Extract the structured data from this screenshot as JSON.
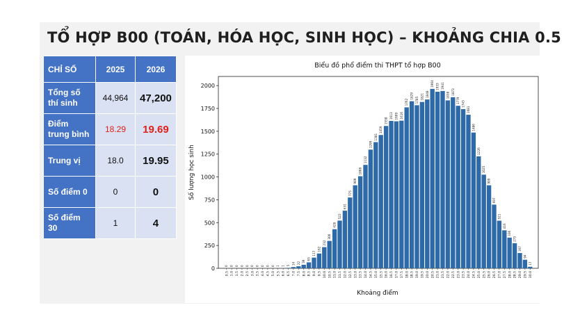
{
  "slide": {
    "title": "TỔ HỢP B00 (TOÁN, HÓA HỌC, SINH HỌC) – KHOẢNG CHIA 0.5"
  },
  "stats_table": {
    "header": [
      "CHỈ SỐ",
      "2025",
      "2026"
    ],
    "rows": [
      {
        "label": "Tổng số thí sinh",
        "v2025": "44,964",
        "v2026": "47,200"
      },
      {
        "label": "Điểm trung bình",
        "v2025": "18.29",
        "v2026": "19.69"
      },
      {
        "label": "Trung vị",
        "v2025": "18.0",
        "v2026": "19.95"
      },
      {
        "label": "Số điểm 0",
        "v2025": "0",
        "v2026": "0"
      },
      {
        "label": "Số điểm 30",
        "v2025": "1",
        "v2026": "4"
      }
    ],
    "colors": {
      "header_bg": "#4472c4",
      "cell_bg": "#d9e1f2",
      "highlight": "#e0201a"
    }
  },
  "chart_data": {
    "type": "bar",
    "title": "Biểu đồ phổ điểm thi THPT tổ hợp B00",
    "xlabel": "Khoảng điểm",
    "ylabel": "Số lượng học sinh",
    "ylim": [
      0,
      2100
    ],
    "yticks": [
      0,
      250,
      500,
      750,
      1000,
      1250,
      1500,
      1750,
      2000
    ],
    "bar_color": "#2f6aa8",
    "categories": [
      "0.5",
      "1.0",
      "1.5",
      "2.0",
      "2.5",
      "3.0",
      "3.5",
      "4.0",
      "4.5",
      "5.0",
      "5.5",
      "6.0",
      "6.5",
      "7.0",
      "7.5",
      "8.0",
      "8.5",
      "9.0",
      "9.5",
      "10.0",
      "10.5",
      "11.0",
      "11.5",
      "12.0",
      "12.5",
      "13.0",
      "13.5",
      "14.0",
      "14.5",
      "15.0",
      "15.5",
      "16.0",
      "16.5",
      "17.0",
      "17.5",
      "18.0",
      "18.5",
      "19.0",
      "19.5",
      "20.0",
      "20.5",
      "21.0",
      "21.5",
      "22.0",
      "22.5",
      "23.0",
      "23.5",
      "24.0",
      "24.5",
      "25.0",
      "25.5",
      "26.0",
      "26.5",
      "27.0",
      "27.5",
      "28.0",
      "28.5",
      "29.0",
      "29.5",
      "30.0"
    ],
    "values": [
      0,
      0,
      0,
      0,
      0,
      0,
      0,
      0,
      0,
      0,
      1,
      1,
      5,
      14,
      22,
      39,
      65,
      117,
      162,
      232,
      300,
      428,
      522,
      631,
      775,
      909,
      1008,
      1132,
      1299,
      1381,
      1459,
      1558,
      1613,
      1609,
      1616,
      1762,
      1829,
      1785,
      1821,
      1848,
      1964,
      1933,
      1941,
      1838,
      1873,
      1779,
      1743,
      1681,
      1486,
      1226,
      1025,
      909,
      697,
      521,
      416,
      336,
      275,
      167,
      94,
      17
    ],
    "data_labels": [
      "0",
      "0",
      "0",
      "0",
      "0",
      "0",
      "0",
      "0",
      "0",
      "0",
      "1",
      "1",
      "5",
      "14",
      "22",
      "39",
      "65",
      "117",
      "162",
      "232",
      "300",
      "428",
      "522",
      "631",
      "775",
      "909",
      "1008",
      "1132",
      "1299",
      "1381",
      "1459",
      "1558",
      "1613",
      "1609",
      "1616",
      "1762",
      "1829",
      "1785",
      "1821",
      "1848",
      "1964",
      "1933",
      "1941",
      "1838",
      "1873",
      "1779",
      "1743",
      "1681",
      "1486",
      "1226",
      "1025",
      "909",
      "697",
      "521",
      "416",
      "336",
      "275",
      "167",
      "94",
      "17"
    ]
  }
}
